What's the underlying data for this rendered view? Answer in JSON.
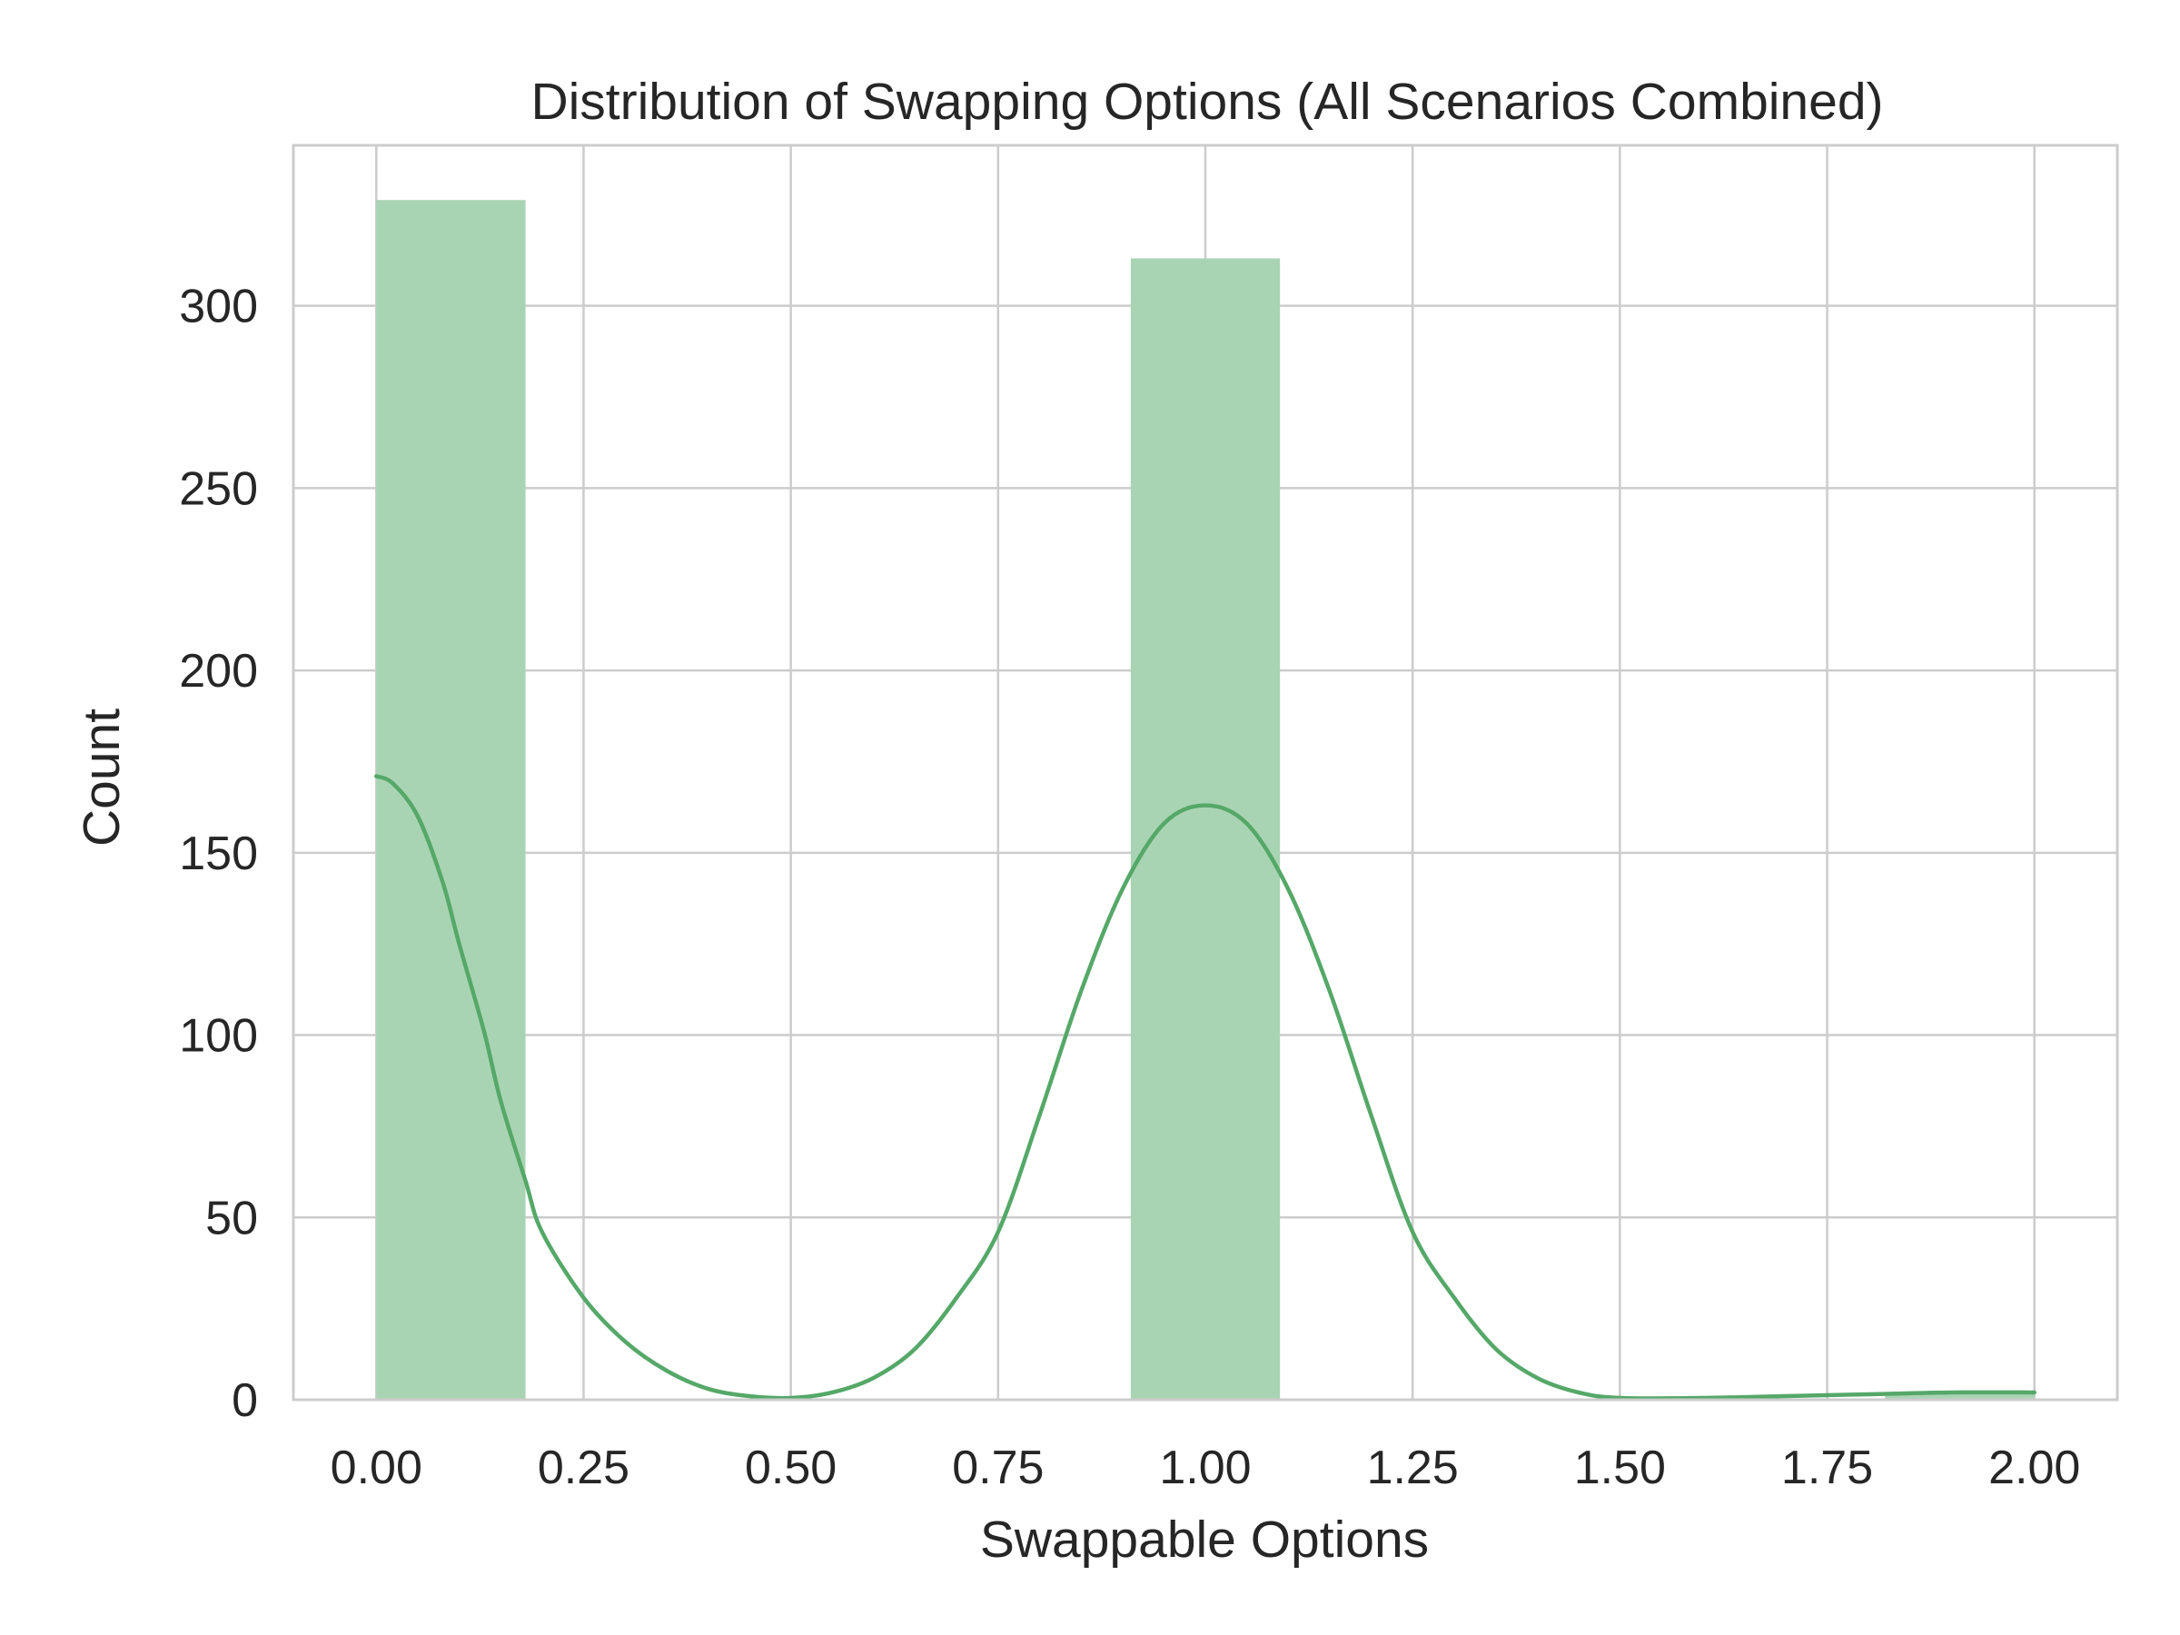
{
  "chart_data": {
    "type": "bar",
    "title": "Distribution of Swapping Options (All Scenarios Combined)",
    "xlabel": "Swappable Options",
    "ylabel": "Count",
    "xlim": [
      -0.1,
      2.1
    ],
    "ylim": [
      0,
      344
    ],
    "grid": true,
    "x_ticks": [
      "0.00",
      "0.25",
      "0.50",
      "0.75",
      "1.00",
      "1.25",
      "1.50",
      "1.75",
      "2.00"
    ],
    "y_ticks": [
      "0",
      "50",
      "100",
      "150",
      "200",
      "250",
      "300"
    ],
    "bars": [
      {
        "x_start": 0.0,
        "x_end": 0.18,
        "count": 329
      },
      {
        "x_start": 0.91,
        "x_end": 1.09,
        "count": 313
      },
      {
        "x_start": 1.82,
        "x_end": 2.0,
        "count": 2
      }
    ],
    "kde_curve": {
      "x": [
        0.0,
        0.02,
        0.05,
        0.08,
        0.1,
        0.13,
        0.15,
        0.18,
        0.2,
        0.25,
        0.3,
        0.35,
        0.4,
        0.45,
        0.5,
        0.55,
        0.6,
        0.65,
        0.7,
        0.75,
        0.8,
        0.85,
        0.9,
        0.95,
        1.0,
        1.05,
        1.1,
        1.15,
        1.2,
        1.25,
        1.3,
        1.35,
        1.4,
        1.45,
        1.5,
        1.6,
        1.7,
        1.8,
        1.9,
        2.0
      ],
      "y": [
        171,
        169,
        160,
        142,
        125,
        101,
        82,
        60,
        46,
        28,
        16,
        8,
        3,
        1,
        0.5,
        2,
        6,
        14,
        28,
        46,
        78,
        112,
        140,
        158,
        163,
        158,
        140,
        112,
        78,
        46,
        28,
        14,
        6,
        2,
        0.5,
        0.5,
        1,
        1.5,
        2,
        2
      ]
    },
    "colors": {
      "bar_fill": "#a9d4b3",
      "curve": "#55a868"
    }
  }
}
